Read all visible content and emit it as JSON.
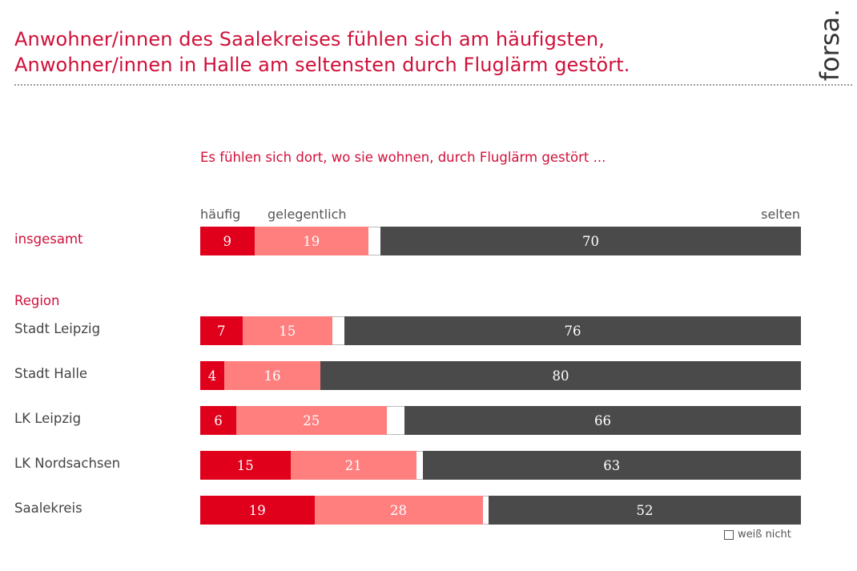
{
  "header": {
    "title_lines": [
      "Anwohner/innen des Saalekreises fühlen sich am häufigsten,",
      "Anwohner/innen in Halle am seltensten durch Fluglärm gestört."
    ],
    "logo": "forsa."
  },
  "colors": {
    "accent": "#d0103a",
    "haeufig": "#e0001b",
    "gelegentlich": "#ff7f7f",
    "weiss_nicht": "#ffffff",
    "selten": "#4a4a4a"
  },
  "chart_data": {
    "type": "bar",
    "orientation": "horizontal-stacked-100",
    "title": "Anwohner/innen des Saalekreises fühlen sich am häufigsten, Anwohner/innen in Halle am seltensten durch Fluglärm gestört.",
    "subtitle": "Es fühlen sich dort, wo sie wohnen, durch Fluglärm gestört ...",
    "group_label": "Region",
    "series_labels": {
      "haeufig": "häufig",
      "gelegentlich": "gelegentlich",
      "selten": "selten",
      "weiss_nicht": "weiß nicht"
    },
    "categories": [
      "insgesamt",
      "Stadt Leipzig",
      "Stadt Halle",
      "LK Leipzig",
      "LK Nordsachsen",
      "Saalekreis"
    ],
    "series": [
      {
        "name": "häufig",
        "key": "haeufig",
        "values": [
          9,
          7,
          4,
          6,
          15,
          19
        ]
      },
      {
        "name": "gelegentlich",
        "key": "gelegentlich",
        "values": [
          19,
          15,
          16,
          25,
          21,
          28
        ]
      },
      {
        "name": "weiß nicht",
        "key": "weiss_nicht",
        "values": [
          2,
          2,
          0,
          3,
          1,
          1
        ]
      },
      {
        "name": "selten",
        "key": "selten",
        "values": [
          70,
          76,
          80,
          66,
          63,
          52
        ]
      }
    ],
    "xlim": [
      0,
      100
    ],
    "unit": "%",
    "legend": {
      "position": "bottom-right",
      "label": "weiß nicht"
    }
  }
}
